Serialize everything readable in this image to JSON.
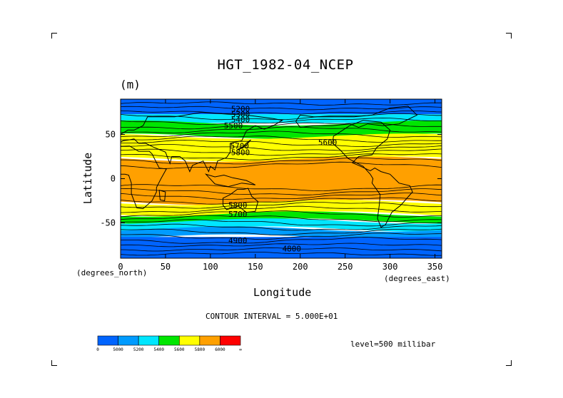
{
  "chart_data": {
    "type": "contour",
    "title": "HGT_1982-04_NCEP",
    "units_label": "(m)",
    "xlabel": "Longitude",
    "ylabel": "Latitude",
    "x_units_left": "(degrees_north)",
    "x_units_right": "(degrees_east)",
    "xlim": [
      0,
      357.5
    ],
    "ylim": [
      -90,
      90
    ],
    "x_ticks": [
      {
        "value": 0,
        "label": "0"
      },
      {
        "value": 50,
        "label": "50"
      },
      {
        "value": 100,
        "label": "100"
      },
      {
        "value": 150,
        "label": "150"
      },
      {
        "value": 200,
        "label": "200"
      },
      {
        "value": 250,
        "label": "250"
      },
      {
        "value": 300,
        "label": "300"
      },
      {
        "value": 350,
        "label": "350"
      }
    ],
    "y_ticks": [
      {
        "value": 50,
        "label": "50"
      },
      {
        "value": 0,
        "label": "0"
      },
      {
        "value": -50,
        "label": "-50"
      }
    ],
    "contour_interval_label": "CONTOUR INTERVAL = 5.000E+01",
    "level_label": "level=500 millibar",
    "colorbar": {
      "colors": [
        "#0064ff",
        "#009bff",
        "#00e6ff",
        "#00e600",
        "#ffff00",
        "#ffa000",
        "#ff0000"
      ],
      "labels": [
        "0",
        "5000",
        "5200",
        "5400",
        "5600",
        "5800",
        "6000",
        "∞"
      ]
    },
    "bands": [
      {
        "lat": [
          90,
          73
        ],
        "color": "#0064ff"
      },
      {
        "lat": [
          73,
          63
        ],
        "color": "#00e6ff"
      },
      {
        "lat": [
          63,
          48
        ],
        "color": "#00e600"
      },
      {
        "lat": [
          48,
          22
        ],
        "color": "#ffff00"
      },
      {
        "lat": [
          22,
          -27
        ],
        "color": "#ffa000"
      },
      {
        "lat": [
          -27,
          -40
        ],
        "color": "#ffff00"
      },
      {
        "lat": [
          -40,
          -48
        ],
        "color": "#00e600"
      },
      {
        "lat": [
          -48,
          -57
        ],
        "color": "#00e6ff"
      },
      {
        "lat": [
          -57,
          -66
        ],
        "color": "#009bff"
      },
      {
        "lat": [
          -66,
          -90
        ],
        "color": "#0064ff"
      }
    ],
    "contour_labels": [
      {
        "text": "5200",
        "lon": 123,
        "lat": 79
      },
      {
        "text": "5300",
        "lon": 123,
        "lat": 73
      },
      {
        "text": "5400",
        "lon": 123,
        "lat": 67
      },
      {
        "text": "5500",
        "lon": 115,
        "lat": 60
      },
      {
        "text": "5600",
        "lon": 220,
        "lat": 41
      },
      {
        "text": "5700",
        "lon": 122,
        "lat": 37
      },
      {
        "text": "5800",
        "lon": 123,
        "lat": 30
      },
      {
        "text": "5800",
        "lon": 120,
        "lat": -30
      },
      {
        "text": "5700",
        "lon": 120,
        "lat": -40
      },
      {
        "text": "4900",
        "lon": 120,
        "lat": -70
      },
      {
        "text": "4800",
        "lon": 180,
        "lat": -79
      }
    ]
  }
}
